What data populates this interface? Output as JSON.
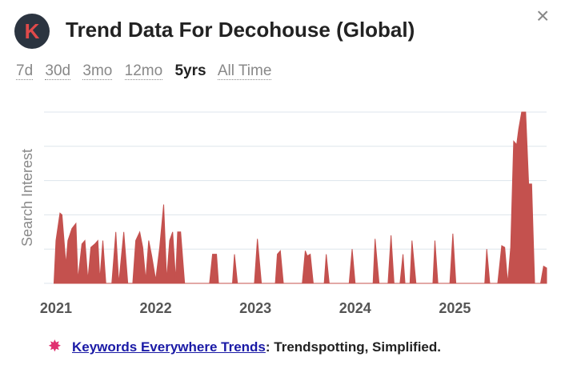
{
  "header": {
    "logo": "K",
    "title": "Trend Data For Decohouse (Global)",
    "close": "×"
  },
  "tabs": [
    "7d",
    "30d",
    "3mo",
    "12mo",
    "5yrs",
    "All Time"
  ],
  "chart_data": {
    "type": "area",
    "y_label": "Search Interest",
    "color": "#c4514e",
    "x": [
      2020.98,
      2021.0,
      2021.04,
      2021.06,
      2021.1,
      2021.12,
      2021.16,
      2021.2,
      2021.22,
      2021.26,
      2021.29,
      2021.32,
      2021.35,
      2021.39,
      2021.42,
      2021.44,
      2021.47,
      2021.5,
      2021.56,
      2021.6,
      2021.63,
      2021.68,
      2021.72,
      2021.77,
      2021.8,
      2021.84,
      2021.87,
      2021.9,
      2021.93,
      2021.96,
      2022.0,
      2022.04,
      2022.08,
      2022.11,
      2022.14,
      2022.17,
      2022.2,
      2022.22,
      2022.25,
      2022.29,
      2022.54,
      2022.57,
      2022.61,
      2022.63,
      2022.77,
      2022.79,
      2022.82,
      2022.99,
      2023.02,
      2023.06,
      2023.2,
      2023.22,
      2023.25,
      2023.28,
      2023.47,
      2023.5,
      2023.52,
      2023.55,
      2023.58,
      2023.69,
      2023.71,
      2023.74,
      2023.94,
      2023.97,
      2024.0,
      2024.18,
      2024.2,
      2024.24,
      2024.33,
      2024.36,
      2024.39,
      2024.45,
      2024.48,
      2024.5,
      2024.55,
      2024.57,
      2024.61,
      2024.78,
      2024.8,
      2024.83,
      2024.95,
      2024.98,
      2025.01,
      2025.3,
      2025.32,
      2025.35,
      2025.43,
      2025.47,
      2025.5,
      2025.53,
      2025.56,
      2025.59,
      2025.62,
      2025.64,
      2025.67,
      2025.71,
      2025.74,
      2025.77,
      2025.8,
      2025.86,
      2025.89,
      2025.92
    ],
    "values": [
      0,
      25,
      41,
      40,
      11,
      25,
      32,
      35,
      2,
      23,
      25,
      2,
      21,
      23,
      25,
      2,
      25,
      0,
      0,
      30,
      0,
      30,
      0,
      0,
      25,
      30,
      21,
      2,
      25,
      16,
      2,
      21,
      46,
      2,
      25,
      30,
      2,
      30,
      30,
      0,
      0,
      17,
      17,
      0,
      0,
      17,
      0,
      0,
      26,
      0,
      0,
      17,
      19,
      0,
      0,
      19,
      16,
      17,
      0,
      0,
      17,
      0,
      0,
      20,
      0,
      0,
      26,
      0,
      0,
      28,
      0,
      0,
      17,
      0,
      0,
      25,
      0,
      0,
      25,
      0,
      0,
      29,
      0,
      0,
      20,
      0,
      0,
      22,
      21,
      0,
      21,
      83,
      81,
      90,
      100,
      100,
      58,
      58,
      0,
      0,
      10,
      9
    ],
    "xlim": [
      2020.88,
      2025.92
    ],
    "ylim": [
      0,
      100
    ],
    "xticks": [
      2021,
      2022,
      2023,
      2024,
      2025
    ],
    "ygrid": [
      0,
      20,
      40,
      60,
      80,
      100
    ]
  },
  "footer": {
    "link": "Keywords Everywhere Trends",
    "text": ": Trendspotting, Simplified."
  }
}
